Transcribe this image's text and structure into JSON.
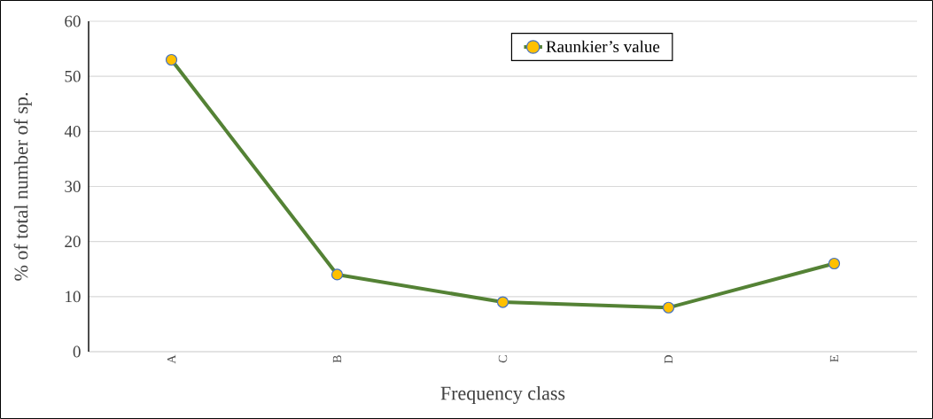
{
  "chart_data": {
    "type": "line",
    "xlabel": "Frequency class",
    "ylabel": "% of  total number of  sp.",
    "categories": [
      "A",
      "B",
      "C",
      "D",
      "E"
    ],
    "series": [
      {
        "name": "Raunkier’s value",
        "color": "#548235",
        "values": [
          53,
          14,
          9,
          8,
          16
        ]
      }
    ],
    "ylim": [
      0,
      60
    ],
    "yticks": [
      0,
      10,
      20,
      30,
      40,
      50,
      60
    ],
    "grid": "y",
    "legend": "top right",
    "marker": "circle",
    "line_style": "solid"
  }
}
